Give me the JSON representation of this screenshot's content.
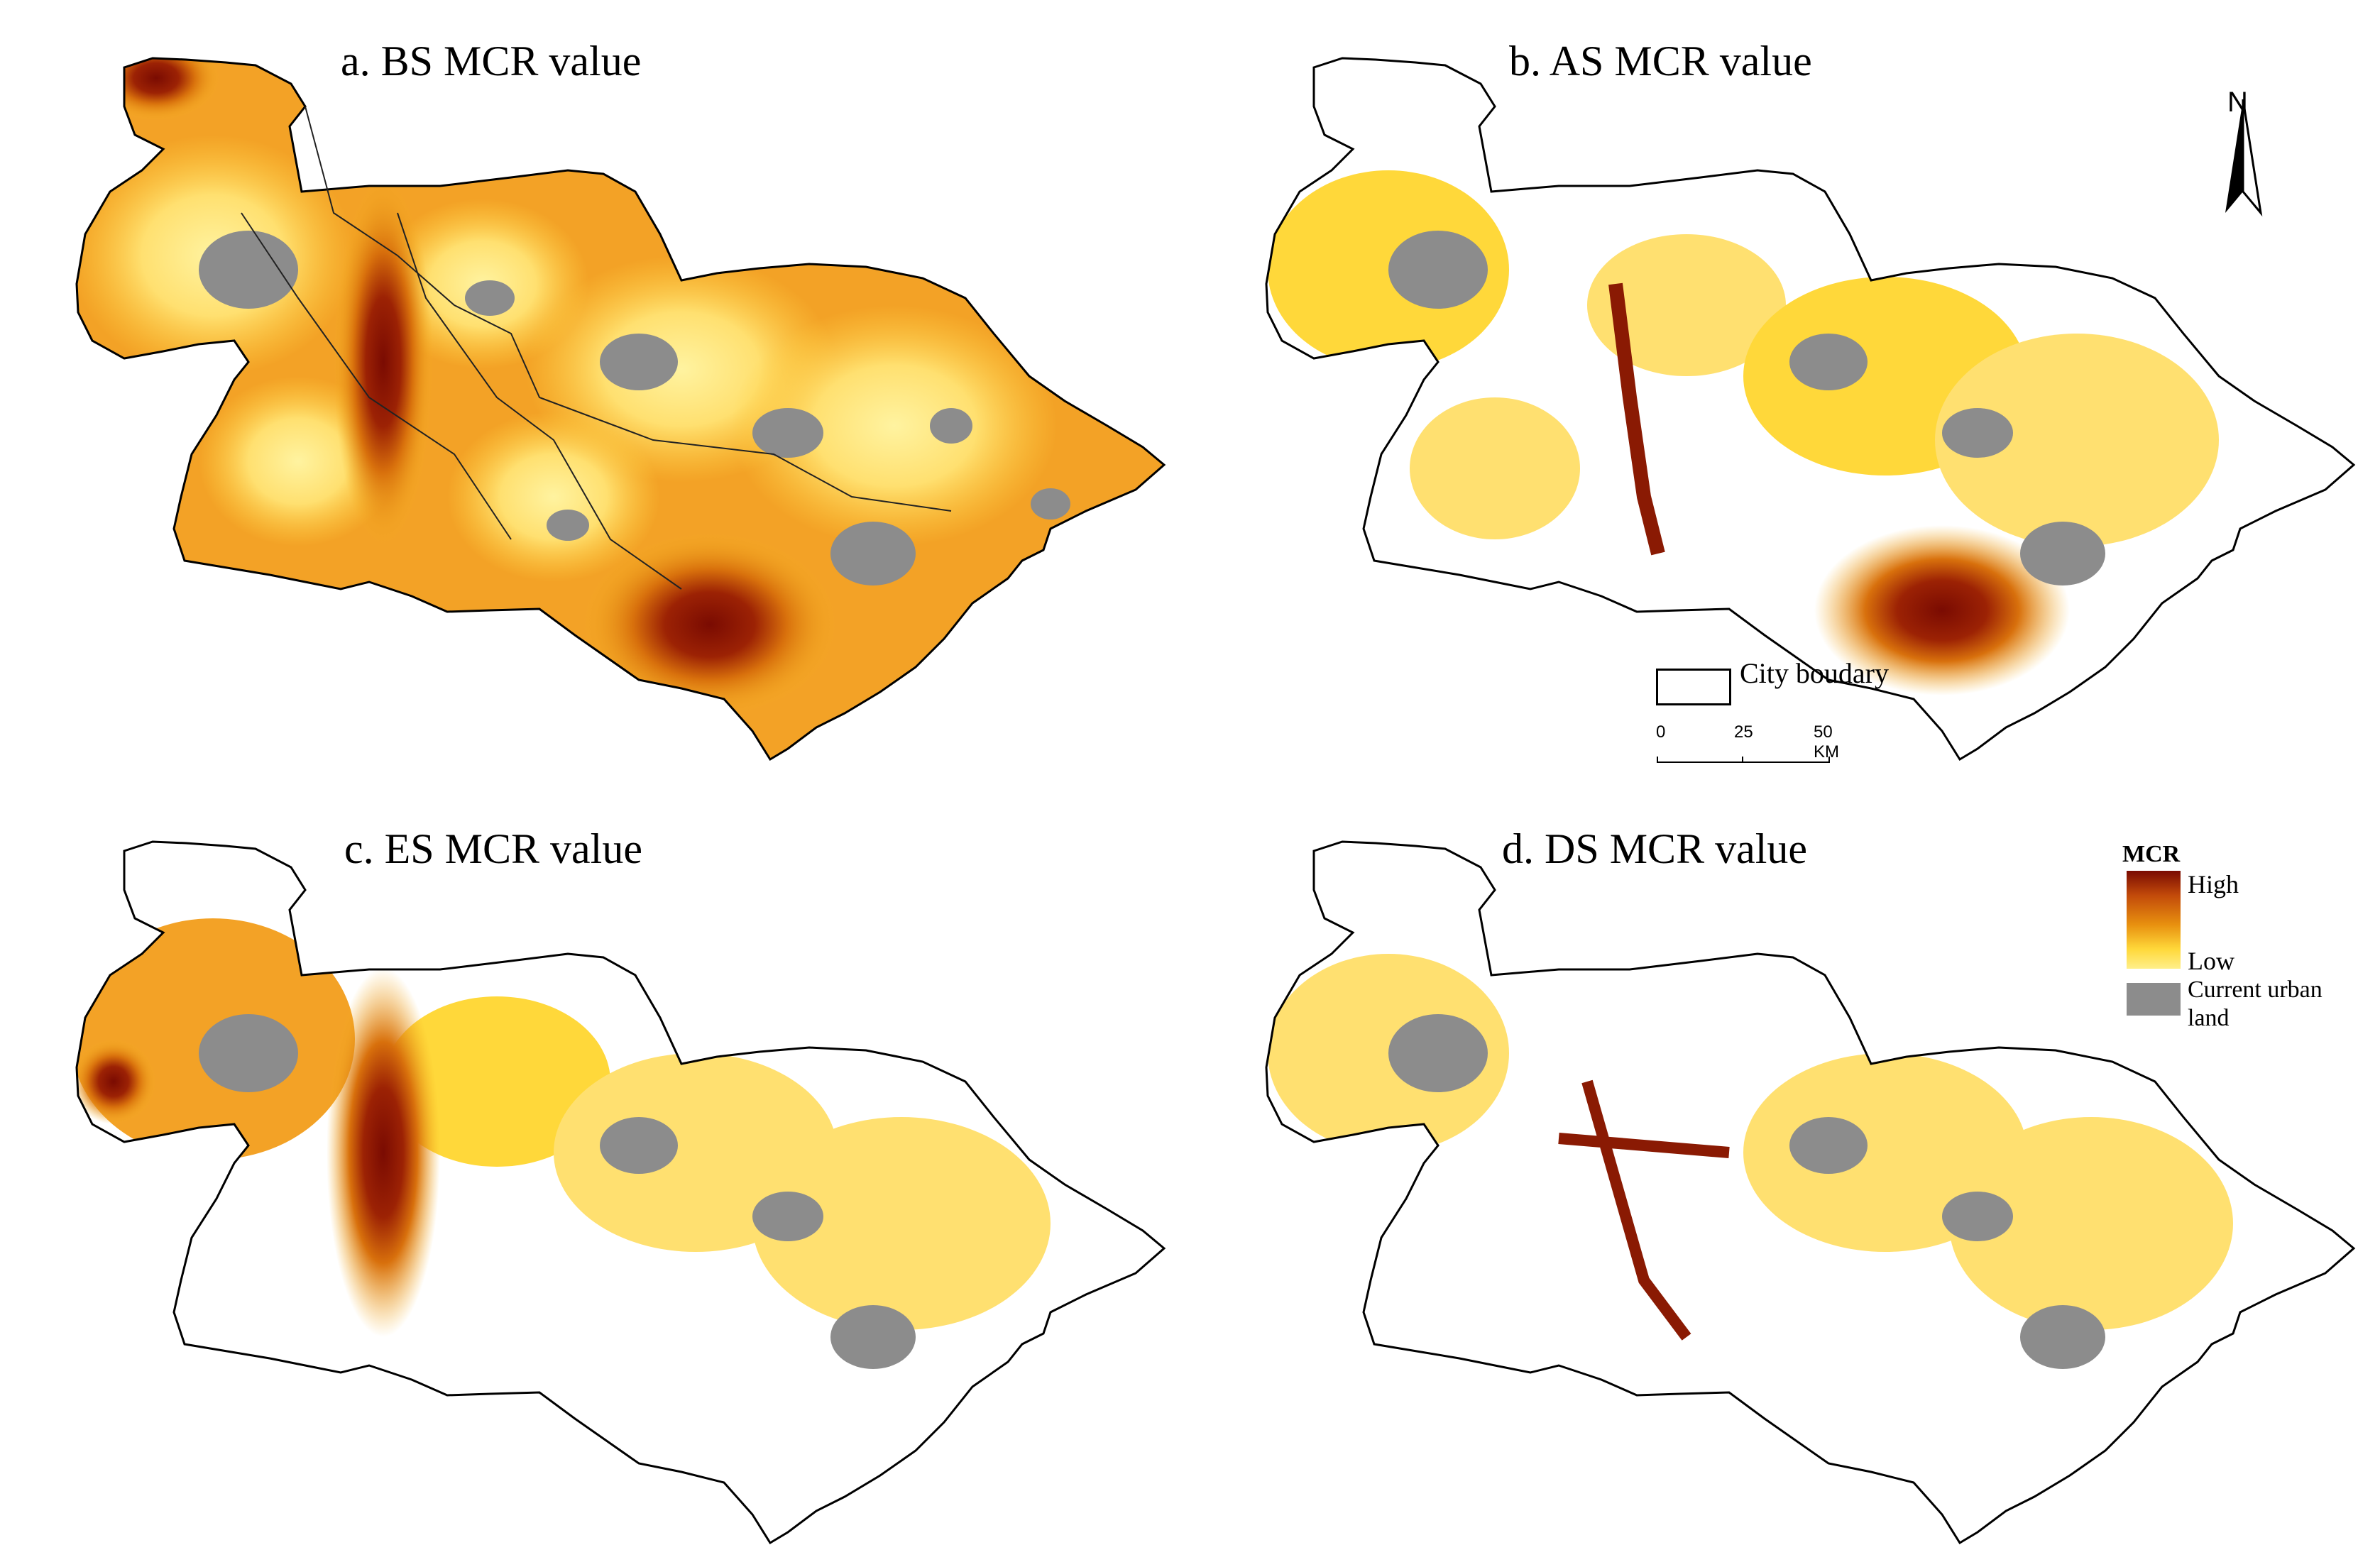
{
  "panels": {
    "a": {
      "title": "a. BS MCR value"
    },
    "b": {
      "title": "b. AS MCR value"
    },
    "c": {
      "title": "c. ES MCR value"
    },
    "d": {
      "title": "d. DS MCR value"
    }
  },
  "north_arrow": {
    "label": "N"
  },
  "boundary_legend": {
    "label": "City boudary"
  },
  "scale_bar": {
    "ticks": [
      "0",
      "25",
      "50 KM"
    ]
  },
  "mcr_legend": {
    "title": "MCR",
    "high_label": "High",
    "low_label": "Low",
    "urban_label": "Current urban land"
  },
  "colors": {
    "high": "#7a0b02",
    "mid_high": "#c24a0a",
    "mid": "#e8900f",
    "low": "#ffd83a",
    "lowest": "#ffef8a",
    "urban_land": "#8c8c8c",
    "boundary": "#000000"
  }
}
